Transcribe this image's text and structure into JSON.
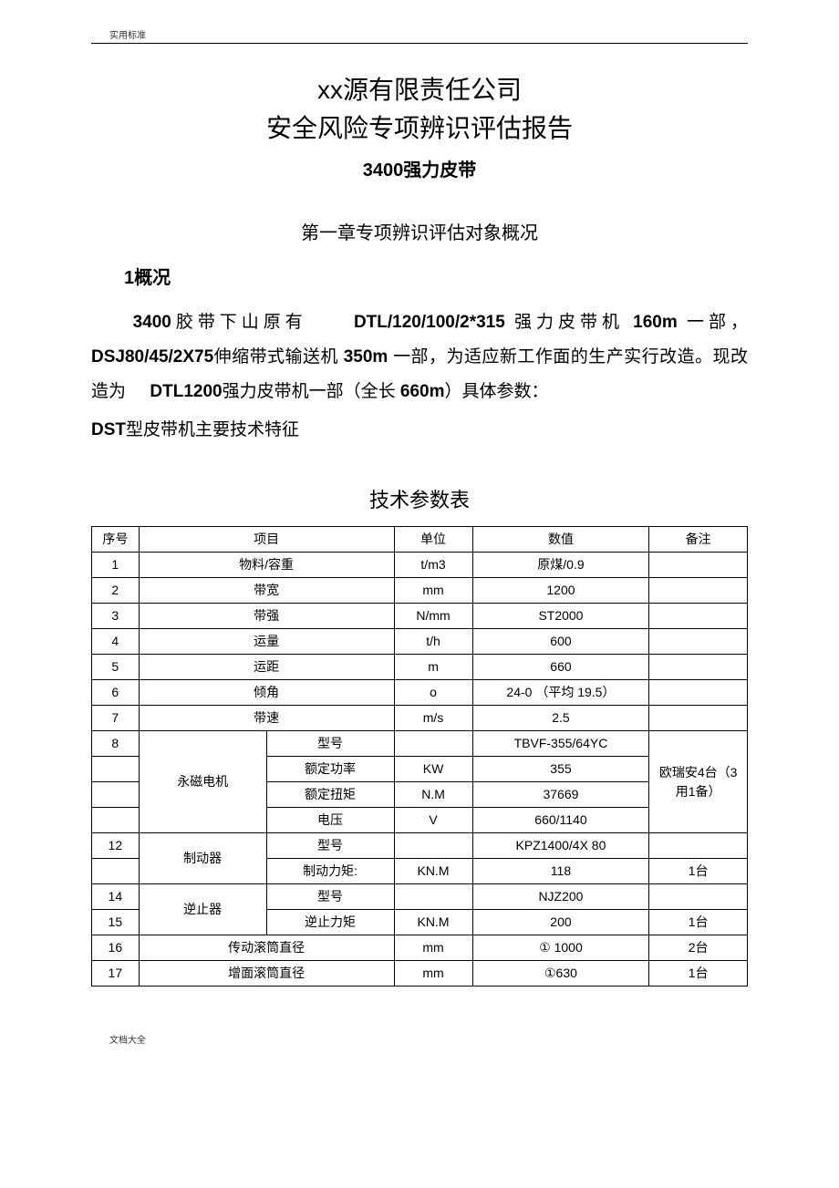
{
  "header_label": "实用标准",
  "footer_label": "文档大全",
  "title_lines": [
    "xx源有限责任公司",
    "安全风险专项辨识评估报告"
  ],
  "subtitle": "3400强力皮带",
  "chapter_heading": "第一章专项辨识评估对象概况",
  "section_heading": "1概况",
  "para_runs": {
    "r1": "3400",
    "r2": "胶带下山原有",
    "r3": "DTL/120/100/2*315 ",
    "r4": "强力皮带机 ",
    "r5": "160m ",
    "r6": "一部，",
    "r7": "DSJ80/45/2X75",
    "r8": "伸缩带式输送机 ",
    "r9": "350m ",
    "r10": "一部，为适应新工作面的生产实行改造。现改造为",
    "r11": "DTL1200",
    "r12": "强力皮带机一部（全长 ",
    "r13": "660m",
    "r14": "）具体参数："
  },
  "dst_line": {
    "bold": "DST",
    "rest": "型皮带机主要技术特征"
  },
  "table_title": "技术参数表",
  "table": {
    "headers": {
      "seq": "序号",
      "item": "项目",
      "unit": "单位",
      "value": "数值",
      "note": "备注"
    },
    "rows": [
      {
        "seq": "1",
        "item": "物料/容重",
        "unit": "t/m3",
        "value": "原煤/0.9",
        "note": ""
      },
      {
        "seq": "2",
        "item": "带宽",
        "unit": "mm",
        "value": "1200",
        "note": ""
      },
      {
        "seq": "3",
        "item": "带强",
        "unit": "N/mm",
        "value": "ST2000",
        "note": ""
      },
      {
        "seq": "4",
        "item": "运量",
        "unit": "t/h",
        "value": "600",
        "note": ""
      },
      {
        "seq": "5",
        "item": "运距",
        "unit": "m",
        "value": "660",
        "note": ""
      },
      {
        "seq": "6",
        "item": "倾角",
        "unit": "o",
        "value": "24-0 （平均 19.5）",
        "note": ""
      },
      {
        "seq": "7",
        "item": "带速",
        "unit": "m/s",
        "value": "2.5",
        "note": ""
      }
    ],
    "motor": {
      "seq": "8",
      "group": "永磁电机",
      "note": "欧瑞安4台（3用1备）",
      "sub": [
        {
          "name": "型号",
          "unit": "",
          "value": "TBVF-355/64YC"
        },
        {
          "name": "额定功率",
          "unit": "KW",
          "value": "355"
        },
        {
          "name": "额定扭矩",
          "unit": "N.M",
          "value": "37669"
        },
        {
          "name": "电压",
          "unit": "V",
          "value": "660/1140"
        }
      ]
    },
    "brake": {
      "seq": "12",
      "group": "制动器",
      "sub": [
        {
          "name": "型号",
          "unit": "",
          "value": "KPZ1400/4X 80",
          "note": ""
        },
        {
          "name": "制动力矩:",
          "unit": "KN.M",
          "value": "118",
          "note": "1台"
        }
      ]
    },
    "backstop": {
      "seq1": "14",
      "seq2": "15",
      "group": "逆止器",
      "sub": [
        {
          "name": "型号",
          "unit": "",
          "value": "NJZ200",
          "note": ""
        },
        {
          "name": "逆止力矩",
          "unit": "KN.M",
          "value": "200",
          "note": "1台"
        }
      ]
    },
    "tail_rows": [
      {
        "seq": "16",
        "item": "传动滚筒直径",
        "unit": "mm",
        "value": "① 1000",
        "note": "2台"
      },
      {
        "seq": "17",
        "item": "增面滚筒直径",
        "unit": "mm",
        "value": "①630",
        "note": "1台"
      }
    ]
  }
}
